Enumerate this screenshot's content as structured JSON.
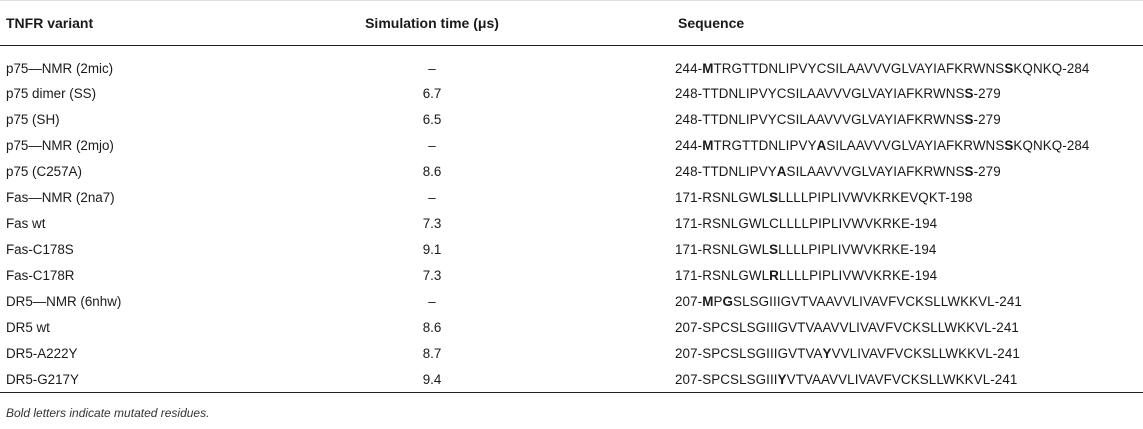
{
  "table": {
    "headers": [
      "TNFR variant",
      "Simulation time (μs)",
      "Sequence"
    ],
    "rows": [
      {
        "variant": "p75—NMR (2mic)",
        "time": "–",
        "seq": [
          [
            "244-",
            false
          ],
          [
            "M",
            true
          ],
          [
            "TRGTTDNLIPVYCSILAAVVVGLVAYIAFKRWNS",
            false
          ],
          [
            "S",
            true
          ],
          [
            "KQNKQ-284",
            false
          ]
        ]
      },
      {
        "variant": "p75 dimer (SS)",
        "time": "6.7",
        "seq": [
          [
            "248-TTDNLIPVYCSILAAVVVGLVAYIAFKRWNS",
            false
          ],
          [
            "S",
            true
          ],
          [
            "-279",
            false
          ]
        ]
      },
      {
        "variant": "p75 (SH)",
        "time": "6.5",
        "seq": [
          [
            "248-TTDNLIPVYCSILAAVVVGLVAYIAFKRWNS",
            false
          ],
          [
            "S",
            true
          ],
          [
            "-279",
            false
          ]
        ]
      },
      {
        "variant": "p75—NMR (2mjo)",
        "time": "–",
        "seq": [
          [
            "244-",
            false
          ],
          [
            "M",
            true
          ],
          [
            "TRGTTDNLIPVY",
            false
          ],
          [
            "A",
            true
          ],
          [
            "SILAAVVVGLVAYIAFKRWNS",
            false
          ],
          [
            "S",
            true
          ],
          [
            "KQNKQ-284",
            false
          ]
        ]
      },
      {
        "variant": "p75 (C257A)",
        "time": "8.6",
        "seq": [
          [
            "248-TTDNLIPVY",
            false
          ],
          [
            "A",
            true
          ],
          [
            "SILAAVVVGLVAYIAFKRWNS",
            false
          ],
          [
            "S",
            true
          ],
          [
            "-279",
            false
          ]
        ]
      },
      {
        "variant": "Fas—NMR (2na7)",
        "time": "–",
        "seq": [
          [
            "171-RSNLGWL",
            false
          ],
          [
            "S",
            true
          ],
          [
            "LLLLPIPLIVWVKRKEVQKT-198",
            false
          ]
        ]
      },
      {
        "variant": "Fas wt",
        "time": "7.3",
        "seq": [
          [
            "171-RSNLGWLCLLLLPIPLIVWVKRKE-194",
            false
          ]
        ]
      },
      {
        "variant": "Fas-C178S",
        "time": "9.1",
        "seq": [
          [
            "171-RSNLGWL",
            false
          ],
          [
            "S",
            true
          ],
          [
            "LLLLPIPLIVWVKRKE-194",
            false
          ]
        ]
      },
      {
        "variant": "Fas-C178R",
        "time": "7.3",
        "seq": [
          [
            "171-RSNLGWL",
            false
          ],
          [
            "R",
            true
          ],
          [
            "LLLLPIPLIVWVKRKE-194",
            false
          ]
        ]
      },
      {
        "variant": "DR5—NMR (6nhw)",
        "time": "–",
        "seq": [
          [
            "207-",
            false
          ],
          [
            "M",
            true
          ],
          [
            "P",
            false
          ],
          [
            "G",
            true
          ],
          [
            "SLSGIIIGVTVAAVVLIVAVFVCKSLLWKKVL-241",
            false
          ]
        ]
      },
      {
        "variant": "DR5 wt",
        "time": "8.6",
        "seq": [
          [
            "207-SPCSLSGIIIGVTVAAVVLIVAVFVCKSLLWKKVL-241",
            false
          ]
        ]
      },
      {
        "variant": "DR5-A222Y",
        "time": "8.7",
        "seq": [
          [
            "207-SPCSLSGIIIGVTVA",
            false
          ],
          [
            "Y",
            true
          ],
          [
            "VVLIVAVFVCKSLLWKKVL-241",
            false
          ]
        ]
      },
      {
        "variant": "DR5-G217Y",
        "time": "9.4",
        "seq": [
          [
            "207-SPCSLSGIII",
            false
          ],
          [
            "Y",
            true
          ],
          [
            "VTVAAVVLIVAVFVCKSLLWKKVL-241",
            false
          ]
        ]
      }
    ]
  },
  "footnote": "Bold letters indicate mutated residues."
}
